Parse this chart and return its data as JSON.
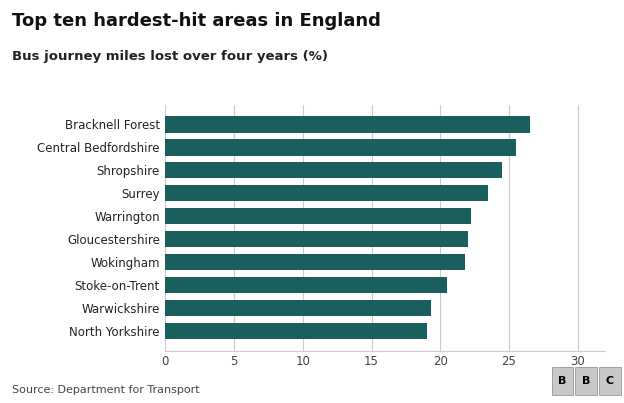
{
  "title": "Top ten hardest-hit areas in England",
  "subtitle": "Bus journey miles lost over four years (%)",
  "source": "Source: Department for Transport",
  "categories": [
    "Bracknell Forest",
    "Central Bedfordshire",
    "Shropshire",
    "Surrey",
    "Warrington",
    "Gloucestershire",
    "Wokingham",
    "Stoke-on-Trent",
    "Warwickshire",
    "North Yorkshire"
  ],
  "values": [
    26.5,
    25.5,
    24.5,
    23.5,
    22.2,
    22.0,
    21.8,
    20.5,
    19.3,
    19.0
  ],
  "bar_color": "#1a5f5e",
  "xlim": [
    0,
    32
  ],
  "xticks": [
    0,
    5,
    10,
    15,
    20,
    25,
    30
  ],
  "title_fontsize": 13,
  "subtitle_fontsize": 9.5,
  "label_fontsize": 8.5,
  "tick_fontsize": 8.5,
  "source_fontsize": 8,
  "background_color": "#ffffff"
}
